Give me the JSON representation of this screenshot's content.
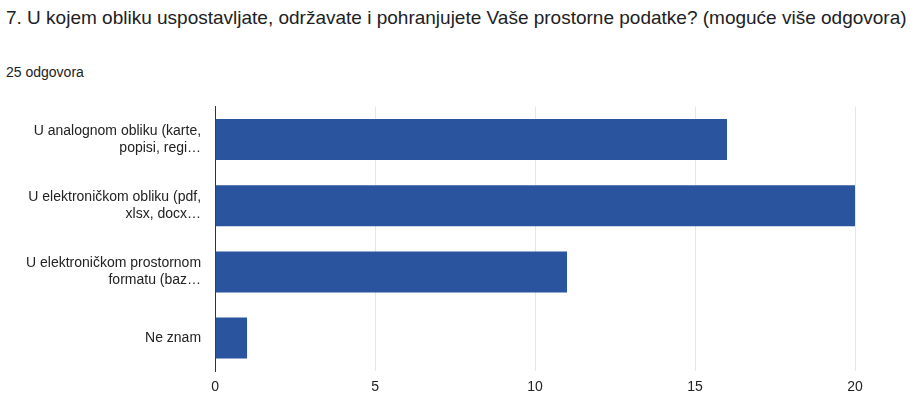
{
  "chart_data": {
    "type": "bar",
    "orientation": "horizontal",
    "title": "7. U kojem obliku uspostavljate, održavate i pohranjujete Vaše prostorne podatke? (moguće više odgovora)",
    "subtitle": "25 odgovora",
    "categories": [
      "U analognom obliku (karte, popisi, regi…",
      "U elektroničkom obliku (pdf, xlsx, docx…",
      "U elektroničkom prostornom formatu (baz…",
      "Ne znam"
    ],
    "values": [
      16,
      20,
      11,
      1
    ],
    "color": "#2b549e",
    "xlim": [
      0,
      20
    ],
    "xticks": [
      0,
      5,
      10,
      15,
      20
    ],
    "grid": true
  }
}
